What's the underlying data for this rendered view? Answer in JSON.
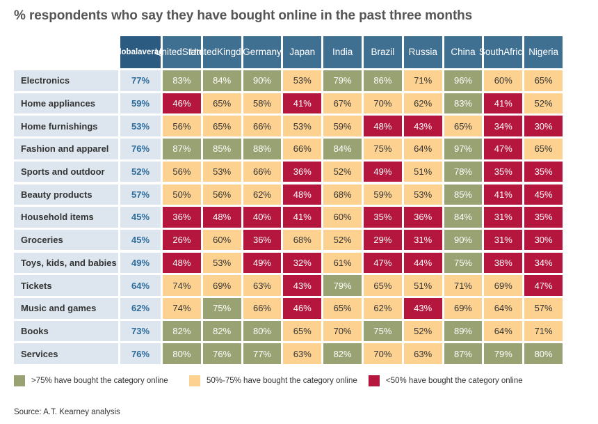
{
  "title": "% respondents who say they have bought online in the past three months",
  "source": "Source: A.T. Kearney analysis",
  "colors": {
    "high": "#99a273",
    "mid": "#fdd291",
    "low": "#b4163d",
    "header": "#3f6f91",
    "global_header": "#2b5b80",
    "row_label_bg": "#dde6ee",
    "global_text": "#2b6a99"
  },
  "legend": [
    {
      "key": "high",
      "label": ">75% have bought the category online"
    },
    {
      "key": "mid",
      "label": "50%-75% have bought the category online"
    },
    {
      "key": "low",
      "label": "<50% have bought the category online"
    }
  ],
  "chart_data": {
    "type": "table",
    "title": "% respondents who say they have bought online in the past three months",
    "global_label": [
      "Global",
      "average"
    ],
    "columns": [
      [
        "United",
        "States"
      ],
      [
        "United",
        "Kingdom"
      ],
      [
        "Germany"
      ],
      [
        "Japan"
      ],
      [
        "India"
      ],
      [
        "Brazil"
      ],
      [
        "Russia"
      ],
      [
        "China"
      ],
      [
        "South",
        "Africa"
      ],
      [
        "Nigeria"
      ]
    ],
    "rows": [
      {
        "category": "Electronics",
        "global": 77,
        "values": [
          83,
          84,
          90,
          53,
          79,
          86,
          71,
          96,
          60,
          65
        ]
      },
      {
        "category": "Home appliances",
        "global": 59,
        "values": [
          46,
          65,
          58,
          41,
          67,
          70,
          62,
          83,
          41,
          52
        ]
      },
      {
        "category": "Home furnishings",
        "global": 53,
        "values": [
          56,
          65,
          66,
          53,
          59,
          48,
          43,
          65,
          34,
          30
        ]
      },
      {
        "category": "Fashion and apparel",
        "global": 76,
        "values": [
          87,
          85,
          88,
          66,
          84,
          75,
          64,
          97,
          47,
          65
        ]
      },
      {
        "category": "Sports and outdoor",
        "global": 52,
        "values": [
          56,
          53,
          66,
          36,
          52,
          49,
          51,
          78,
          35,
          35
        ]
      },
      {
        "category": "Beauty products",
        "global": 57,
        "values": [
          50,
          56,
          62,
          48,
          68,
          59,
          53,
          85,
          41,
          45
        ]
      },
      {
        "category": "Household items",
        "global": 45,
        "values": [
          36,
          48,
          40,
          41,
          60,
          35,
          36,
          84,
          31,
          35
        ]
      },
      {
        "category": "Groceries",
        "global": 45,
        "values": [
          26,
          60,
          36,
          68,
          52,
          29,
          31,
          90,
          31,
          30
        ]
      },
      {
        "category": "Toys, kids, and babies",
        "global": 49,
        "values": [
          48,
          53,
          49,
          32,
          61,
          47,
          44,
          75,
          38,
          34
        ]
      },
      {
        "category": "Tickets",
        "global": 64,
        "values": [
          74,
          69,
          63,
          43,
          79,
          65,
          51,
          71,
          69,
          47
        ]
      },
      {
        "category": "Music and games",
        "global": 62,
        "values": [
          74,
          75,
          66,
          46,
          65,
          62,
          43,
          69,
          64,
          57
        ]
      },
      {
        "category": "Books",
        "global": 73,
        "values": [
          82,
          82,
          80,
          65,
          70,
          75,
          52,
          89,
          64,
          71
        ]
      },
      {
        "category": "Services",
        "global": 76,
        "values": [
          80,
          76,
          77,
          63,
          82,
          70,
          63,
          87,
          79,
          80
        ]
      }
    ],
    "cell_levels": [
      [
        "high",
        "high",
        "high",
        "mid",
        "high",
        "high",
        "mid",
        "high",
        "mid",
        "mid"
      ],
      [
        "low",
        "mid",
        "mid",
        "low",
        "mid",
        "mid",
        "mid",
        "high",
        "low",
        "mid"
      ],
      [
        "mid",
        "mid",
        "mid",
        "mid",
        "mid",
        "low",
        "low",
        "mid",
        "low",
        "low"
      ],
      [
        "high",
        "high",
        "high",
        "mid",
        "high",
        "mid",
        "mid",
        "high",
        "low",
        "mid"
      ],
      [
        "mid",
        "mid",
        "mid",
        "low",
        "mid",
        "low",
        "mid",
        "high",
        "low",
        "low"
      ],
      [
        "mid",
        "mid",
        "mid",
        "low",
        "mid",
        "mid",
        "mid",
        "high",
        "low",
        "low"
      ],
      [
        "low",
        "low",
        "low",
        "low",
        "mid",
        "low",
        "low",
        "high",
        "low",
        "low"
      ],
      [
        "low",
        "mid",
        "low",
        "mid",
        "mid",
        "low",
        "low",
        "high",
        "low",
        "low"
      ],
      [
        "low",
        "mid",
        "low",
        "low",
        "mid",
        "low",
        "low",
        "high",
        "low",
        "low"
      ],
      [
        "mid",
        "mid",
        "mid",
        "low",
        "high",
        "mid",
        "mid",
        "mid",
        "mid",
        "low"
      ],
      [
        "mid",
        "high",
        "mid",
        "low",
        "mid",
        "mid",
        "low",
        "mid",
        "mid",
        "mid"
      ],
      [
        "high",
        "high",
        "high",
        "mid",
        "mid",
        "high",
        "mid",
        "high",
        "mid",
        "mid"
      ],
      [
        "high",
        "high",
        "high",
        "mid",
        "high",
        "mid",
        "mid",
        "high",
        "high",
        "high"
      ]
    ]
  }
}
